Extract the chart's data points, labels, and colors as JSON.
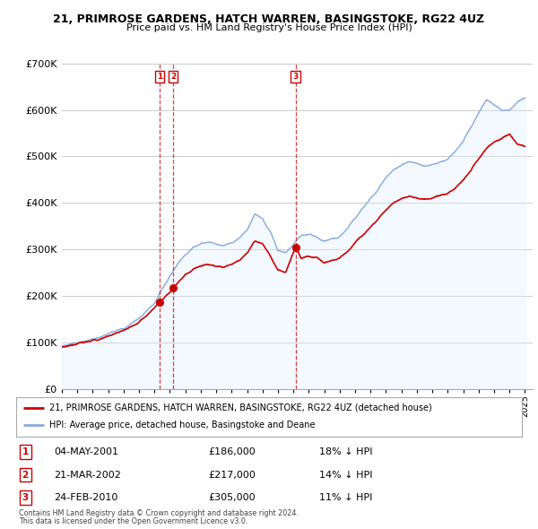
{
  "title": "21, PRIMROSE GARDENS, HATCH WARREN, BASINGSTOKE, RG22 4UZ",
  "subtitle": "Price paid vs. HM Land Registry's House Price Index (HPI)",
  "red_label": "21, PRIMROSE GARDENS, HATCH WARREN, BASINGSTOKE, RG22 4UZ (detached house)",
  "blue_label": "HPI: Average price, detached house, Basingstoke and Deane",
  "red_color": "#cc0000",
  "blue_color": "#88aadd",
  "blue_fill": "#ddeeff",
  "background_color": "#ffffff",
  "plot_bg": "#ffffff",
  "grid_color": "#cccccc",
  "sale_points": [
    {
      "num": 1,
      "date": "04-MAY-2001",
      "price": 186000,
      "pct": "18%",
      "x_year": 2001.34
    },
    {
      "num": 2,
      "date": "21-MAR-2002",
      "price": 217000,
      "pct": "14%",
      "x_year": 2002.22
    },
    {
      "num": 3,
      "date": "24-FEB-2010",
      "price": 305000,
      "pct": "11%",
      "x_year": 2010.14
    }
  ],
  "footnote1": "Contains HM Land Registry data © Crown copyright and database right 2024.",
  "footnote2": "This data is licensed under the Open Government Licence v3.0.",
  "ylim": [
    0,
    700000
  ],
  "xlim_start": 1995.0,
  "xlim_end": 2025.5
}
